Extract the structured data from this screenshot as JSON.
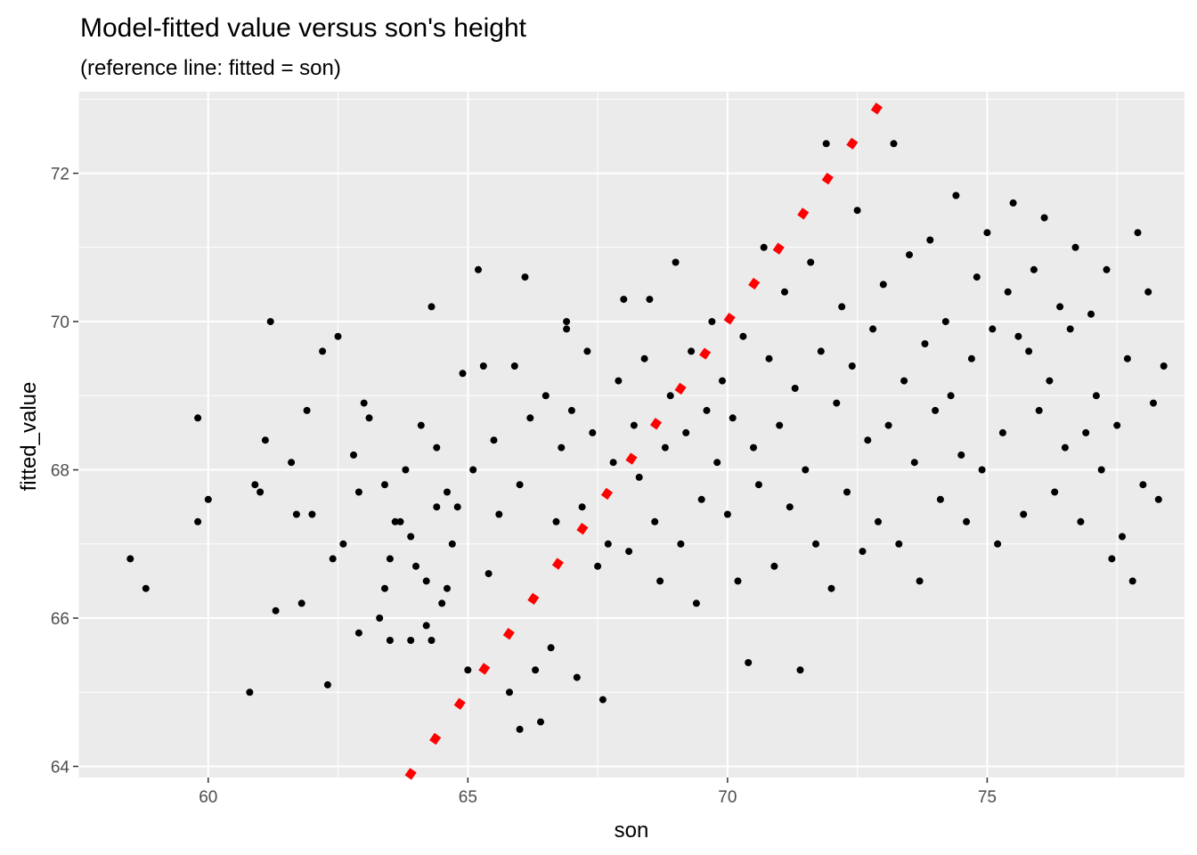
{
  "chart_data": {
    "type": "scatter",
    "title": "Model-fitted value versus son's height",
    "subtitle": "(reference line: fitted = son)",
    "xlabel": "son",
    "ylabel": "fitted_value",
    "xlim": [
      57.5,
      78.8
    ],
    "ylim": [
      63.85,
      73.1
    ],
    "x_ticks": [
      60,
      65,
      70,
      75
    ],
    "x_tick_labels": [
      "60",
      "65",
      "70",
      "75"
    ],
    "y_ticks": [
      64,
      66,
      68,
      70,
      72
    ],
    "y_tick_labels": [
      "64",
      "66",
      "68",
      "70",
      "72"
    ],
    "grid": true,
    "panel_background": "#ebebeb",
    "grid_color": "#ffffff",
    "point_color": "#000000",
    "reference_line": {
      "slope": 1,
      "intercept": 0,
      "style": "dashed",
      "color": "#ff0000"
    },
    "series": [
      {
        "points": [
          [
            58.5,
            66.8
          ],
          [
            58.8,
            66.4
          ],
          [
            59.8,
            68.7
          ],
          [
            59.8,
            67.3
          ],
          [
            60.0,
            67.6
          ],
          [
            60.8,
            65.0
          ],
          [
            60.9,
            67.8
          ],
          [
            61.0,
            67.7
          ],
          [
            61.1,
            68.4
          ],
          [
            61.2,
            70.0
          ],
          [
            61.3,
            66.1
          ],
          [
            61.6,
            68.1
          ],
          [
            61.7,
            67.4
          ],
          [
            61.8,
            66.2
          ],
          [
            61.9,
            68.8
          ],
          [
            62.0,
            67.4
          ],
          [
            62.2,
            69.6
          ],
          [
            62.3,
            65.1
          ],
          [
            62.4,
            66.8
          ],
          [
            62.5,
            69.8
          ],
          [
            62.6,
            67.0
          ],
          [
            62.8,
            68.2
          ],
          [
            62.9,
            65.8
          ],
          [
            62.9,
            67.7
          ],
          [
            63.0,
            68.9
          ],
          [
            63.1,
            68.7
          ],
          [
            63.3,
            66.0
          ],
          [
            63.4,
            67.8
          ],
          [
            63.4,
            66.4
          ],
          [
            63.5,
            65.7
          ],
          [
            63.5,
            66.8
          ],
          [
            63.6,
            67.3
          ],
          [
            63.7,
            67.3
          ],
          [
            63.8,
            68.0
          ],
          [
            63.9,
            67.1
          ],
          [
            63.9,
            65.7
          ],
          [
            64.0,
            66.7
          ],
          [
            64.1,
            68.6
          ],
          [
            64.2,
            65.9
          ],
          [
            64.2,
            66.5
          ],
          [
            64.3,
            70.2
          ],
          [
            64.3,
            65.7
          ],
          [
            64.4,
            68.3
          ],
          [
            64.4,
            67.5
          ],
          [
            64.5,
            66.2
          ],
          [
            64.6,
            67.7
          ],
          [
            64.6,
            66.4
          ],
          [
            64.7,
            67.0
          ],
          [
            64.8,
            67.5
          ],
          [
            64.9,
            69.3
          ],
          [
            65.0,
            65.3
          ],
          [
            65.1,
            68.0
          ],
          [
            65.2,
            70.7
          ],
          [
            65.3,
            69.4
          ],
          [
            65.4,
            66.6
          ],
          [
            65.5,
            68.4
          ],
          [
            65.6,
            67.4
          ],
          [
            65.8,
            65.0
          ],
          [
            65.9,
            69.4
          ],
          [
            66.0,
            64.5
          ],
          [
            66.0,
            67.8
          ],
          [
            66.1,
            70.6
          ],
          [
            66.2,
            68.7
          ],
          [
            66.3,
            65.3
          ],
          [
            66.4,
            64.6
          ],
          [
            66.5,
            69.0
          ],
          [
            66.6,
            65.6
          ],
          [
            66.7,
            67.3
          ],
          [
            66.8,
            68.3
          ],
          [
            66.9,
            69.9
          ],
          [
            66.9,
            70.0
          ],
          [
            67.0,
            68.8
          ],
          [
            67.1,
            65.2
          ],
          [
            67.2,
            67.5
          ],
          [
            67.3,
            69.6
          ],
          [
            67.4,
            68.5
          ],
          [
            67.5,
            66.7
          ],
          [
            67.6,
            64.9
          ],
          [
            67.7,
            67.0
          ],
          [
            67.8,
            68.1
          ],
          [
            67.9,
            69.2
          ],
          [
            68.0,
            70.3
          ],
          [
            68.1,
            66.9
          ],
          [
            68.2,
            68.6
          ],
          [
            68.3,
            67.9
          ],
          [
            68.4,
            69.5
          ],
          [
            68.5,
            70.3
          ],
          [
            68.6,
            67.3
          ],
          [
            68.7,
            66.5
          ],
          [
            68.8,
            68.3
          ],
          [
            68.9,
            69.0
          ],
          [
            69.0,
            70.8
          ],
          [
            69.1,
            67.0
          ],
          [
            69.2,
            68.5
          ],
          [
            69.3,
            69.6
          ],
          [
            69.4,
            66.2
          ],
          [
            69.5,
            67.6
          ],
          [
            69.6,
            68.8
          ],
          [
            69.7,
            70.0
          ],
          [
            69.8,
            68.1
          ],
          [
            69.9,
            69.2
          ],
          [
            70.0,
            67.4
          ],
          [
            70.1,
            68.7
          ],
          [
            70.2,
            66.5
          ],
          [
            70.3,
            69.8
          ],
          [
            70.4,
            65.4
          ],
          [
            70.5,
            68.3
          ],
          [
            70.6,
            67.8
          ],
          [
            70.7,
            71.0
          ],
          [
            70.8,
            69.5
          ],
          [
            70.9,
            66.7
          ],
          [
            71.0,
            68.6
          ],
          [
            71.1,
            70.4
          ],
          [
            71.2,
            67.5
          ],
          [
            71.3,
            69.1
          ],
          [
            71.4,
            65.3
          ],
          [
            71.5,
            68.0
          ],
          [
            71.6,
            70.8
          ],
          [
            71.7,
            67.0
          ],
          [
            71.8,
            69.6
          ],
          [
            71.9,
            72.4
          ],
          [
            72.0,
            66.4
          ],
          [
            72.1,
            68.9
          ],
          [
            72.2,
            70.2
          ],
          [
            72.3,
            67.7
          ],
          [
            72.4,
            69.4
          ],
          [
            72.5,
            71.5
          ],
          [
            72.6,
            66.9
          ],
          [
            72.7,
            68.4
          ],
          [
            72.8,
            69.9
          ],
          [
            72.9,
            67.3
          ],
          [
            73.0,
            70.5
          ],
          [
            73.1,
            68.6
          ],
          [
            73.2,
            72.4
          ],
          [
            73.3,
            67.0
          ],
          [
            73.4,
            69.2
          ],
          [
            73.5,
            70.9
          ],
          [
            73.6,
            68.1
          ],
          [
            73.7,
            66.5
          ],
          [
            73.8,
            69.7
          ],
          [
            73.9,
            71.1
          ],
          [
            74.0,
            68.8
          ],
          [
            74.1,
            67.6
          ],
          [
            74.2,
            70.0
          ],
          [
            74.3,
            69.0
          ],
          [
            74.4,
            71.7
          ],
          [
            74.5,
            68.2
          ],
          [
            74.6,
            67.3
          ],
          [
            74.7,
            69.5
          ],
          [
            74.8,
            70.6
          ],
          [
            74.9,
            68.0
          ],
          [
            75.0,
            71.2
          ],
          [
            75.1,
            69.9
          ],
          [
            75.2,
            67.0
          ],
          [
            75.3,
            68.5
          ],
          [
            75.4,
            70.4
          ],
          [
            75.5,
            71.6
          ],
          [
            75.6,
            69.8
          ],
          [
            75.7,
            67.4
          ],
          [
            75.8,
            69.6
          ],
          [
            75.9,
            70.7
          ],
          [
            76.0,
            68.8
          ],
          [
            76.1,
            71.4
          ],
          [
            76.2,
            69.2
          ],
          [
            76.3,
            67.7
          ],
          [
            76.4,
            70.2
          ],
          [
            76.5,
            68.3
          ],
          [
            76.6,
            69.9
          ],
          [
            76.7,
            71.0
          ],
          [
            76.8,
            67.3
          ],
          [
            76.9,
            68.5
          ],
          [
            77.0,
            70.1
          ],
          [
            77.1,
            69.0
          ],
          [
            77.2,
            68.0
          ],
          [
            77.3,
            70.7
          ],
          [
            77.4,
            66.8
          ],
          [
            77.5,
            68.6
          ],
          [
            77.6,
            67.1
          ],
          [
            77.7,
            69.5
          ],
          [
            77.8,
            66.5
          ],
          [
            77.9,
            71.2
          ],
          [
            78.0,
            67.8
          ],
          [
            78.1,
            70.4
          ],
          [
            78.2,
            68.9
          ],
          [
            78.3,
            67.6
          ],
          [
            78.4,
            69.4
          ]
        ]
      }
    ]
  }
}
